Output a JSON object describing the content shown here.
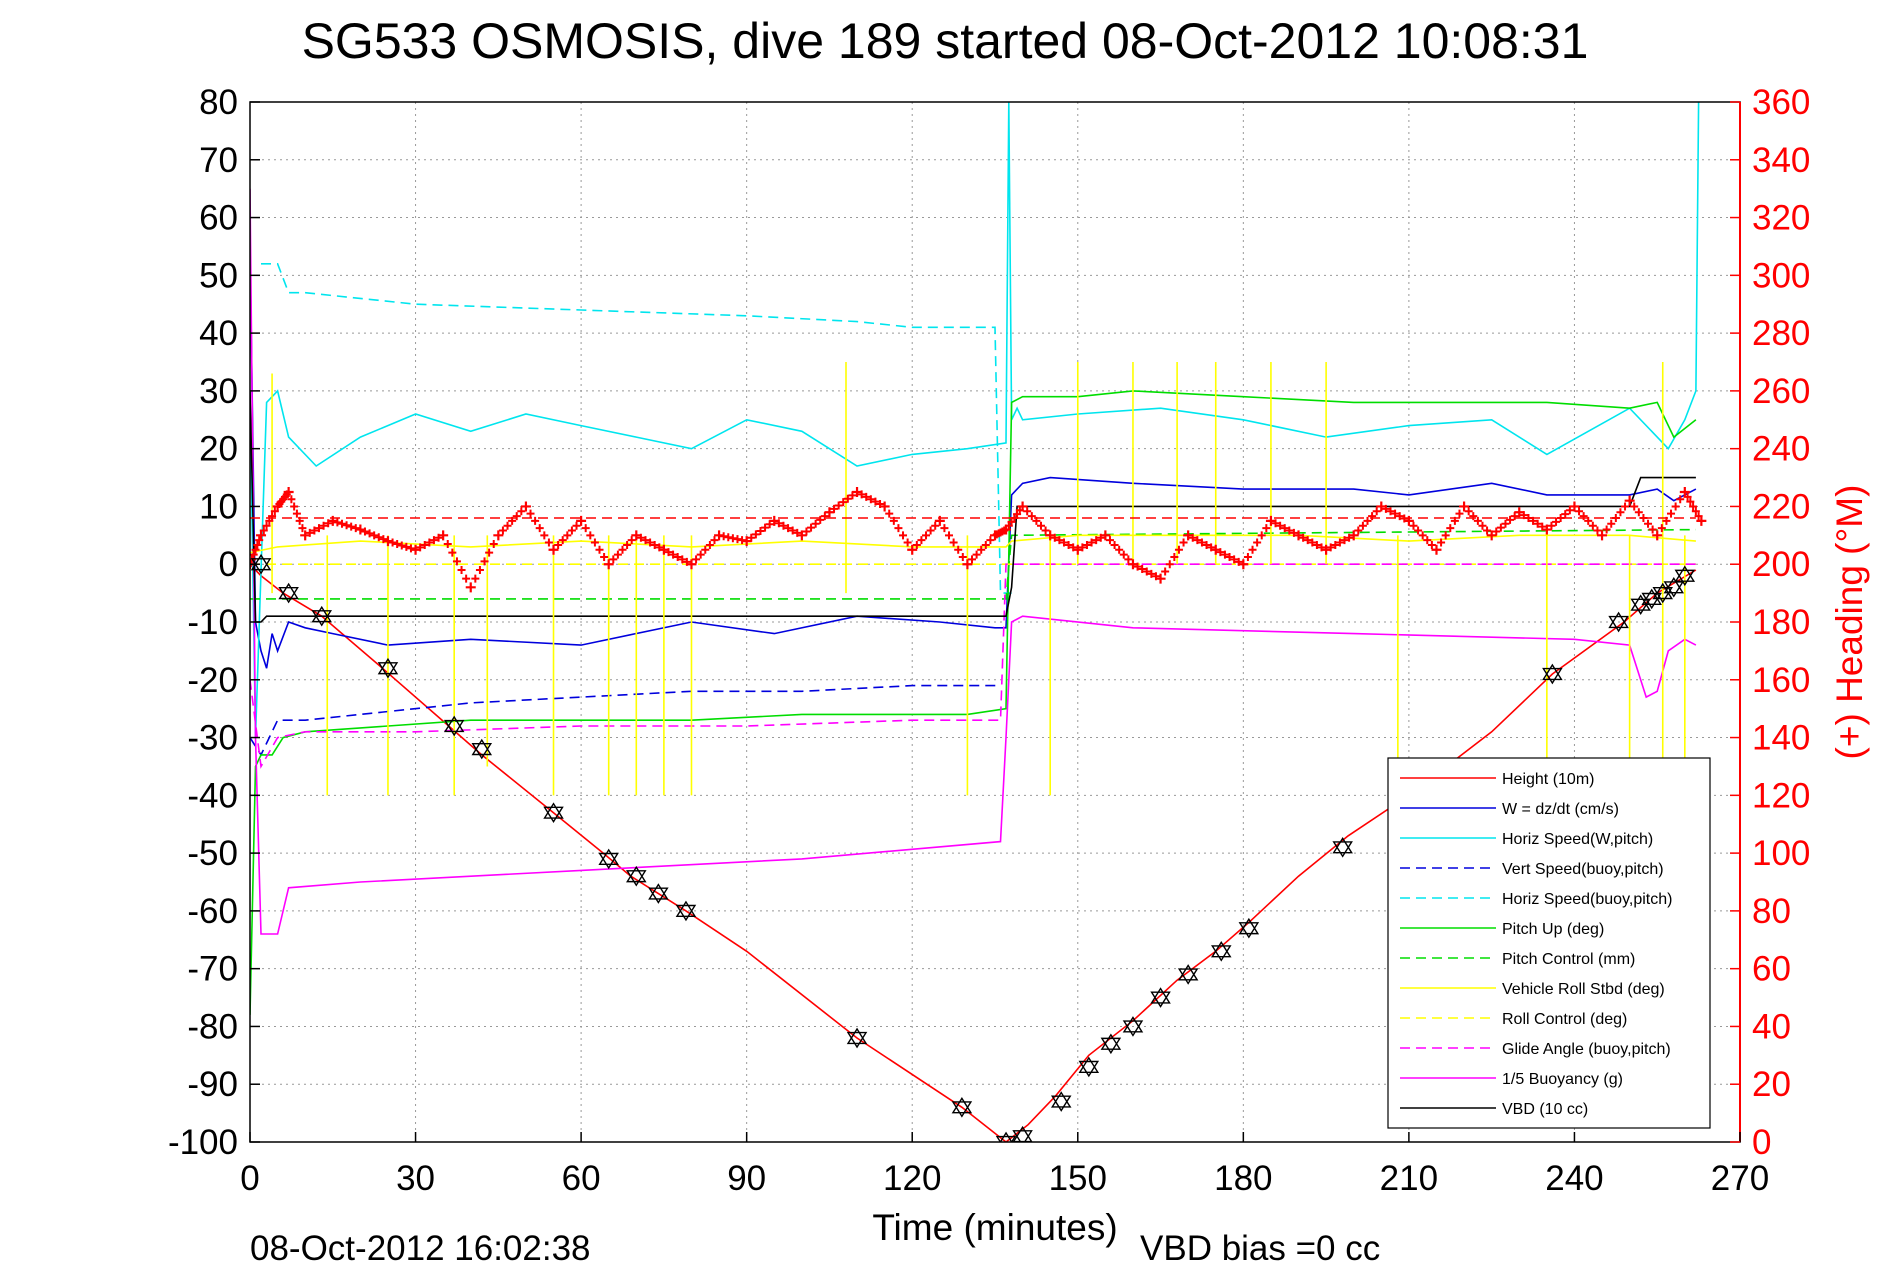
{
  "chart_data": {
    "type": "line",
    "title": "SG533 OSMOSIS, dive 189 started 08-Oct-2012 10:08:31",
    "xlabel": "Time (minutes)",
    "ylabel": "",
    "y2label": "(+) Heading (°M)",
    "xlim": [
      0,
      270
    ],
    "ylim": [
      -100,
      80
    ],
    "y2lim": [
      0,
      360
    ],
    "xticks": [
      "0",
      "30",
      "60",
      "90",
      "120",
      "150",
      "180",
      "210",
      "240",
      "270"
    ],
    "yticks": [
      "80",
      "70",
      "60",
      "50",
      "40",
      "30",
      "20",
      "10",
      "0",
      "-10",
      "-20",
      "-30",
      "-40",
      "-50",
      "-60",
      "-70",
      "-80",
      "-90",
      "-100"
    ],
    "y2ticks": [
      "360",
      "340",
      "320",
      "300",
      "280",
      "260",
      "240",
      "220",
      "200",
      "180",
      "160",
      "140",
      "120",
      "100",
      "80",
      "60",
      "40",
      "20",
      "0"
    ],
    "grid": true,
    "legend_position": "bottom-right",
    "footer_left": "08-Oct-2012 16:02:38",
    "footer_right": "VBD bias =0 cc",
    "colors": {
      "red": "#ff0000",
      "blue": "#0000dd",
      "cyan": "#00e5ee",
      "green": "#00dd00",
      "yellow": "#ffff00",
      "magenta": "#ff00ff",
      "black": "#000000"
    },
    "series": [
      {
        "name": "Height (10m)",
        "color": "#ff0000",
        "style": "solid",
        "x": [
          0,
          2,
          6,
          13,
          24,
          36,
          42,
          55,
          64,
          69,
          74,
          79,
          90,
          110,
          129,
          137,
          141,
          146,
          152,
          160,
          168,
          175,
          181,
          190,
          199,
          210,
          225,
          236,
          249,
          255,
          262
        ],
        "y": [
          0,
          -2,
          -5,
          -9,
          -18,
          -28,
          -33,
          -43,
          -50,
          -54,
          -57,
          -60,
          -67,
          -82,
          -94,
          -100,
          -97,
          -92,
          -85,
          -79,
          -72,
          -67,
          -62,
          -54,
          -47,
          -40,
          -29,
          -19,
          -10,
          -5,
          -1
        ]
      },
      {
        "name": "W = dz/dt (cm/s)",
        "color": "#0000dd",
        "style": "solid",
        "x": [
          0,
          1,
          2,
          3,
          4,
          5,
          7,
          10,
          15,
          25,
          40,
          60,
          80,
          95,
          110,
          125,
          135,
          137,
          138,
          140,
          145,
          160,
          180,
          200,
          210,
          225,
          235,
          250,
          255,
          258,
          262
        ],
        "y": [
          55,
          -10,
          -15,
          -18,
          -12,
          -15,
          -10,
          -11,
          -12,
          -14,
          -13,
          -14,
          -10,
          -12,
          -9,
          -10,
          -11,
          -11,
          12,
          14,
          15,
          14,
          13,
          13,
          12,
          14,
          12,
          12,
          13,
          11,
          13
        ]
      },
      {
        "name": "Horiz Speed(W,pitch)",
        "color": "#00e5ee",
        "style": "solid",
        "x": [
          0,
          1,
          3,
          5,
          7,
          12,
          20,
          30,
          40,
          50,
          60,
          70,
          80,
          90,
          100,
          110,
          120,
          130,
          137,
          137.5,
          138,
          139,
          140,
          150,
          165,
          180,
          195,
          210,
          225,
          235,
          250,
          257,
          260,
          262,
          262.5
        ],
        "y": [
          30,
          -30,
          28,
          30,
          22,
          17,
          22,
          26,
          23,
          26,
          24,
          22,
          20,
          25,
          23,
          17,
          19,
          20,
          21,
          80,
          25,
          27,
          25,
          26,
          27,
          25,
          22,
          24,
          25,
          19,
          27,
          20,
          25,
          30,
          80
        ]
      },
      {
        "name": "Vert Speed(buoy,pitch)",
        "color": "#0000dd",
        "style": "dashed",
        "x": [
          0,
          2,
          5,
          10,
          20,
          40,
          60,
          80,
          100,
          120,
          136
        ],
        "y": [
          -30,
          -33,
          -27,
          -27,
          -26,
          -24,
          -23,
          -22,
          -22,
          -21,
          -21
        ]
      },
      {
        "name": "Horiz Speed(buoy,pitch)",
        "color": "#00e5ee",
        "style": "dashed",
        "x": [
          2,
          5,
          7,
          10,
          30,
          60,
          90,
          110,
          120,
          135,
          136,
          138
        ],
        "y": [
          52,
          52,
          47,
          47,
          45,
          44,
          43,
          42,
          41,
          41,
          -5,
          -5
        ]
      },
      {
        "name": "Pitch Up (deg)",
        "color": "#00dd00",
        "style": "solid",
        "x": [
          0,
          1,
          2,
          4,
          6,
          10,
          25,
          40,
          60,
          80,
          100,
          110,
          120,
          130,
          137,
          138,
          140,
          150,
          160,
          180,
          200,
          225,
          235,
          250,
          255,
          258,
          262
        ],
        "y": [
          -78,
          -35,
          -33,
          -33,
          -30,
          -29,
          -28,
          -27,
          -27,
          -27,
          -26,
          -26,
          -26,
          -26,
          -25,
          28,
          29,
          29,
          30,
          29,
          28,
          28,
          28,
          27,
          28,
          22,
          25
        ]
      },
      {
        "name": "Pitch Control (mm)",
        "color": "#00dd00",
        "style": "dashed",
        "x": [
          0,
          5,
          137,
          138,
          262
        ],
        "y": [
          -6,
          -6,
          -6,
          5,
          6
        ]
      },
      {
        "name": "Vehicle Roll Stbd (deg)",
        "color": "#ffff00",
        "style": "solid",
        "x": [
          0,
          5,
          20,
          40,
          60,
          80,
          100,
          120,
          137,
          138,
          150,
          170,
          190,
          210,
          230,
          250,
          262
        ],
        "y": [
          2,
          3,
          4,
          3,
          4,
          3,
          4,
          3,
          3,
          4,
          5,
          5,
          5,
          4,
          5,
          5,
          4
        ]
      },
      {
        "name": "Roll Control (deg)",
        "color": "#ffff00",
        "style": "dashed",
        "x": [
          0,
          262
        ],
        "y": [
          0,
          0
        ]
      },
      {
        "name": "Glide Angle (buoy,pitch)",
        "color": "#ff00ff",
        "style": "dashed",
        "x": [
          0,
          2,
          5,
          10,
          30,
          60,
          90,
          120,
          136,
          137,
          138,
          262
        ],
        "y": [
          -20,
          -35,
          -30,
          -29,
          -29,
          -28,
          -28,
          -27,
          -27,
          0,
          0,
          0
        ]
      },
      {
        "name": "1/5 Buoyancy (g)",
        "color": "#ff00ff",
        "style": "solid",
        "x": [
          0,
          1,
          2,
          5,
          7,
          20,
          60,
          100,
          136,
          137,
          138,
          140,
          160,
          200,
          240,
          250,
          253,
          255,
          257,
          260,
          262
        ],
        "y": [
          65,
          -30,
          -64,
          -64,
          -56,
          -55,
          -53,
          -51,
          -48,
          -30,
          -10,
          -9,
          -11,
          -12,
          -13,
          -14,
          -23,
          -22,
          -15,
          -13,
          -14
        ]
      },
      {
        "name": "VBD (10 cc)",
        "color": "#000000",
        "style": "solid",
        "x": [
          0,
          1,
          2,
          3,
          137,
          138,
          139,
          250,
          252,
          262
        ],
        "y": [
          30,
          -10,
          -10,
          -9,
          -9,
          -4,
          10,
          10,
          15,
          15
        ]
      }
    ],
    "heading_series": {
      "color": "#ff0000",
      "x": [
        0,
        2,
        5,
        7,
        10,
        15,
        20,
        25,
        30,
        35,
        40,
        45,
        50,
        55,
        60,
        65,
        70,
        75,
        80,
        85,
        90,
        95,
        100,
        105,
        110,
        115,
        120,
        125,
        130,
        135,
        137,
        140,
        145,
        150,
        155,
        160,
        165,
        170,
        175,
        180,
        185,
        190,
        195,
        200,
        205,
        210,
        215,
        220,
        225,
        230,
        235,
        240,
        245,
        250,
        255,
        260,
        263
      ],
      "y": [
        200,
        210,
        220,
        225,
        210,
        215,
        212,
        208,
        205,
        210,
        192,
        210,
        220,
        205,
        215,
        200,
        210,
        205,
        200,
        210,
        208,
        215,
        210,
        218,
        225,
        220,
        205,
        215,
        200,
        210,
        212,
        220,
        210,
        205,
        210,
        200,
        195,
        210,
        205,
        200,
        215,
        210,
        205,
        210,
        220,
        215,
        205,
        220,
        210,
        218,
        212,
        220,
        210,
        222,
        210,
        225,
        215
      ]
    },
    "spikes_yellow_solid": [
      {
        "x": 4,
        "y1": -5,
        "y2": 33
      },
      {
        "x": 14,
        "y1": -40,
        "y2": 5
      },
      {
        "x": 25,
        "y1": -40,
        "y2": 5
      },
      {
        "x": 37,
        "y1": -40,
        "y2": 5
      },
      {
        "x": 43,
        "y1": -35,
        "y2": 5
      },
      {
        "x": 55,
        "y1": -40,
        "y2": 5
      },
      {
        "x": 65,
        "y1": -40,
        "y2": 5
      },
      {
        "x": 70,
        "y1": -40,
        "y2": 5
      },
      {
        "x": 75,
        "y1": -40,
        "y2": 5
      },
      {
        "x": 80,
        "y1": -40,
        "y2": 5
      },
      {
        "x": 108,
        "y1": -5,
        "y2": 35
      },
      {
        "x": 130,
        "y1": -40,
        "y2": 5
      },
      {
        "x": 145,
        "y1": -40,
        "y2": 5
      },
      {
        "x": 150,
        "y1": 0,
        "y2": 35
      },
      {
        "x": 160,
        "y1": 0,
        "y2": 35
      },
      {
        "x": 168,
        "y1": 0,
        "y2": 35
      },
      {
        "x": 175,
        "y1": 0,
        "y2": 35
      },
      {
        "x": 185,
        "y1": 0,
        "y2": 35
      },
      {
        "x": 195,
        "y1": 0,
        "y2": 35
      },
      {
        "x": 208,
        "y1": -40,
        "y2": 5
      },
      {
        "x": 235,
        "y1": -40,
        "y2": 5
      },
      {
        "x": 250,
        "y1": -40,
        "y2": 5
      },
      {
        "x": 256,
        "y1": -40,
        "y2": 35
      },
      {
        "x": 260,
        "y1": -40,
        "y2": 5
      }
    ],
    "markers_triangle": [
      {
        "x": 2,
        "y": 0
      },
      {
        "x": 7,
        "y": -5
      },
      {
        "x": 13,
        "y": -9
      },
      {
        "x": 25,
        "y": -18
      },
      {
        "x": 37,
        "y": -28
      },
      {
        "x": 42,
        "y": -32
      },
      {
        "x": 55,
        "y": -43
      },
      {
        "x": 65,
        "y": -51
      },
      {
        "x": 70,
        "y": -54
      },
      {
        "x": 74,
        "y": -57
      },
      {
        "x": 79,
        "y": -60
      },
      {
        "x": 110,
        "y": -82
      },
      {
        "x": 129,
        "y": -94
      },
      {
        "x": 137,
        "y": -100
      },
      {
        "x": 140,
        "y": -99
      },
      {
        "x": 147,
        "y": -93
      },
      {
        "x": 152,
        "y": -87
      },
      {
        "x": 156,
        "y": -83
      },
      {
        "x": 160,
        "y": -80
      },
      {
        "x": 165,
        "y": -75
      },
      {
        "x": 170,
        "y": -71
      },
      {
        "x": 176,
        "y": -67
      },
      {
        "x": 181,
        "y": -63
      },
      {
        "x": 198,
        "y": -49
      },
      {
        "x": 236,
        "y": -19
      },
      {
        "x": 248,
        "y": -10
      },
      {
        "x": 252,
        "y": -7
      },
      {
        "x": 254,
        "y": -6
      },
      {
        "x": 256,
        "y": -5
      },
      {
        "x": 258,
        "y": -4
      },
      {
        "x": 260,
        "y": -2
      }
    ]
  }
}
